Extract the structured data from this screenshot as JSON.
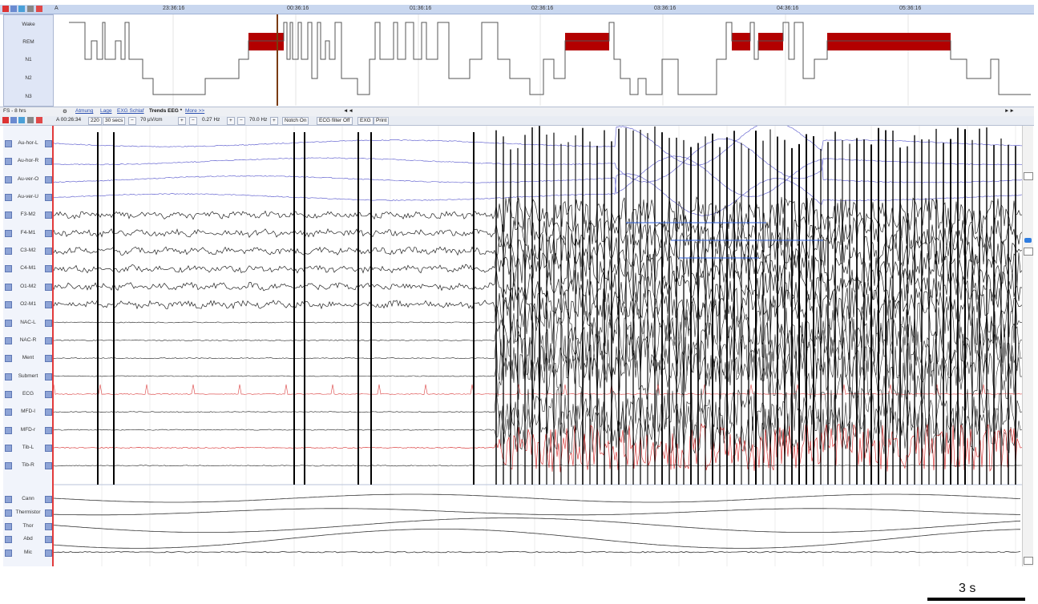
{
  "hypnogram": {
    "marker": "A",
    "times": [
      "23:36:16",
      "00:36:16",
      "01:36:16",
      "02:36:16",
      "03:36:16",
      "04:36:16",
      "05:36:16"
    ],
    "stages": [
      "Wake",
      "REM",
      "N1",
      "N2",
      "N3"
    ]
  },
  "tabbar": {
    "zoom": "FS - 8 hrs",
    "tabs": [
      "Atmung",
      "Lage",
      "EXG Schlaf",
      "Trends EEG *",
      "More >>"
    ],
    "nav_back": "◄◄",
    "nav_fwd": "►►"
  },
  "toolbar": {
    "position": "A 00:26:34",
    "epoch": "220",
    "window": "30 secs",
    "gain": "70 µV/cm",
    "lowcut": "0.27 Hz",
    "highcut": "70.0 Hz",
    "notch": "Notch On",
    "ecg_filter": "ECG filter Off",
    "exg": "EXG",
    "print": "Print",
    "minus": "−",
    "plus": "+"
  },
  "channels": [
    "Au-hor-L",
    "Au-hor-R",
    "Au-ver-O",
    "Au-ver-U",
    "F3-M2",
    "F4-M1",
    "C3-M2",
    "C4-M1",
    "O1-M2",
    "O2-M1",
    "NAC-L",
    "NAC-R",
    "Ment",
    "Submert",
    "ECG",
    "MFD-l",
    "MFD-r",
    "Tib-L",
    "Tib-R"
  ],
  "resp_channels": [
    "Cann",
    "Thermistor",
    "Thor",
    "Abd",
    "Mic"
  ],
  "scale": {
    "label": "3 s"
  },
  "colors": {
    "rem": "#b30000",
    "eog": "#6a6ad2",
    "ecg": "#e05a5a",
    "tib": "#d42020",
    "accent": "#2a4fb0"
  }
}
